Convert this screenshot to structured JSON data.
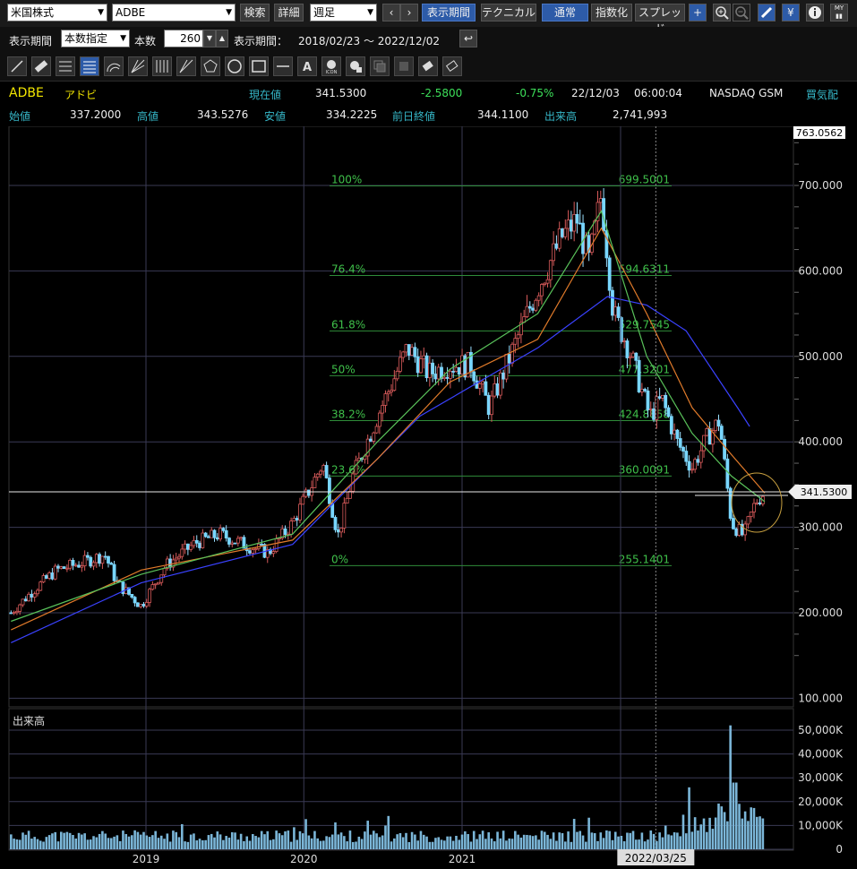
{
  "toolbar1": {
    "market": "米国株式",
    "symbol": "ADBE",
    "search_label": "検索",
    "detail_label": "詳細",
    "period_type": "週足",
    "display_period_label": "表示期間",
    "technical_label": "テクニカル",
    "normal_label": "通常",
    "index_label": "指数化",
    "spread_label": "スプレッド",
    "icons": [
      "prev-icon",
      "next-icon",
      "crosshair-icon",
      "zoom-in-icon",
      "zoom-out-icon",
      "pencil-icon",
      "yen-icon",
      "info-icon",
      "my-settings-icon"
    ]
  },
  "toolbar2": {
    "period_label": "表示期間",
    "period_mode": "本数指定",
    "count_label": "本数",
    "count_value": "260",
    "range_label": "表示期間：",
    "range_value": "2018/02/23 〜 2022/12/02"
  },
  "drawing_tools": [
    "trend-line-icon",
    "ruler-icon",
    "horizontal-lines-icon",
    "channel-lines-icon",
    "fan-arc-icon",
    "fan-lines-icon",
    "vertical-lines-icon",
    "pitchfork-icon",
    "pentagon-icon",
    "circle-icon",
    "rectangle-icon",
    "horizontal-line-icon",
    "text-a-icon",
    "icon-stamp-icon",
    "stamp-icon",
    "copy-icon",
    "hand-icon",
    "eraser-icon",
    "eraser-all-icon"
  ],
  "quote": {
    "symbol": "ADBE",
    "name": "アドビ",
    "current_label": "現在値",
    "current": "341.5300",
    "change": "-2.5800",
    "change_pct": "-0.75%",
    "date": "22/12/03",
    "time": "06:00:04",
    "exchange": "NASDAQ GSM",
    "mood_label": "買気配",
    "open_label": "始値",
    "open": "337.2000",
    "high_label": "高値",
    "high": "343.5276",
    "low_label": "安値",
    "low": "334.2225",
    "prev_close_label": "前日終値",
    "prev_close": "344.1100",
    "volume_label": "出来高",
    "volume": "2,741,993"
  },
  "chart_data": {
    "type": "candlestick",
    "top_label": "763.0562",
    "price_ticks": [
      "700.000",
      "600.000",
      "500.000",
      "400.000",
      "300.000",
      "200.000",
      "100.000"
    ],
    "price_tick_values": [
      700,
      600,
      500,
      400,
      300,
      200,
      100
    ],
    "x_labels": [
      "2019",
      "2020",
      "2021"
    ],
    "x_label_dates": [
      "2019-01-01",
      "2020-01-01",
      "2021-01-01"
    ],
    "cursor_date": "2022/03/25",
    "last_price_label": "341.5300",
    "last_price": 341.53,
    "fibonacci": [
      {
        "pct": "100%",
        "value": "699.5001",
        "price": 699.5001
      },
      {
        "pct": "76.4%",
        "value": "594.6311",
        "price": 594.6311
      },
      {
        "pct": "61.8%",
        "value": "529.7545",
        "price": 529.7545
      },
      {
        "pct": "50%",
        "value": "477.3201",
        "price": 477.3201
      },
      {
        "pct": "38.2%",
        "value": "424.8858",
        "price": 424.8858
      },
      {
        "pct": "23.6%",
        "value": "360.0091",
        "price": 360.0091
      },
      {
        "pct": "0%",
        "value": "255.1401",
        "price": 255.1401
      }
    ],
    "volume_title": "出来高",
    "volume_ticks": [
      "50,000K",
      "40,000K",
      "30,000K",
      "20,000K",
      "10,000K",
      "0"
    ],
    "volume_tick_values": [
      50000,
      40000,
      30000,
      20000,
      10000,
      0
    ],
    "price_path": [
      [
        "2018-02-23",
        200
      ],
      [
        "2018-04-13",
        225
      ],
      [
        "2018-06-08",
        250
      ],
      [
        "2018-08-03",
        258
      ],
      [
        "2018-09-28",
        268
      ],
      [
        "2018-10-26",
        235
      ],
      [
        "2018-12-21",
        208
      ],
      [
        "2019-02-15",
        255
      ],
      [
        "2019-04-26",
        282
      ],
      [
        "2019-06-21",
        292
      ],
      [
        "2019-08-16",
        280
      ],
      [
        "2019-10-11",
        270
      ],
      [
        "2019-12-06",
        305
      ],
      [
        "2020-02-14",
        375
      ],
      [
        "2020-03-20",
        290
      ],
      [
        "2020-04-24",
        360
      ],
      [
        "2020-06-19",
        430
      ],
      [
        "2020-08-28",
        510
      ],
      [
        "2020-10-16",
        480
      ],
      [
        "2020-12-04",
        490
      ],
      [
        "2021-01-22",
        490
      ],
      [
        "2021-03-05",
        440
      ],
      [
        "2021-04-30",
        510
      ],
      [
        "2021-06-25",
        580
      ],
      [
        "2021-08-20",
        640
      ],
      [
        "2021-09-24",
        660
      ],
      [
        "2021-10-22",
        610
      ],
      [
        "2021-11-19",
        690
      ],
      [
        "2021-12-17",
        550
      ],
      [
        "2022-01-21",
        510
      ],
      [
        "2022-03-11",
        430
      ],
      [
        "2022-04-08",
        450
      ],
      [
        "2022-05-13",
        400
      ],
      [
        "2022-06-17",
        370
      ],
      [
        "2022-07-22",
        405
      ],
      [
        "2022-08-19",
        425
      ],
      [
        "2022-09-16",
        305
      ],
      [
        "2022-10-14",
        290
      ],
      [
        "2022-11-11",
        330
      ],
      [
        "2022-12-02",
        341.53
      ]
    ],
    "ma_lines": [
      {
        "color": "#3a42ff",
        "points": [
          [
            "2018-02-23",
            165
          ],
          [
            "2018-12-21",
            235
          ],
          [
            "2019-12-06",
            280
          ],
          [
            "2020-09-25",
            430
          ],
          [
            "2021-06-25",
            510
          ],
          [
            "2021-12-03",
            570
          ],
          [
            "2022-03-04",
            560
          ],
          [
            "2022-06-03",
            530
          ],
          [
            "2022-09-30",
            440
          ],
          [
            "2022-10-28",
            418
          ]
        ]
      },
      {
        "color": "#e07a2a",
        "points": [
          [
            "2018-02-23",
            180
          ],
          [
            "2018-12-21",
            250
          ],
          [
            "2019-12-06",
            285
          ],
          [
            "2020-06-19",
            380
          ],
          [
            "2020-12-04",
            470
          ],
          [
            "2021-06-25",
            520
          ],
          [
            "2021-11-19",
            650
          ],
          [
            "2022-03-04",
            550
          ],
          [
            "2022-06-17",
            440
          ],
          [
            "2022-09-16",
            385
          ],
          [
            "2022-12-02",
            340
          ]
        ]
      },
      {
        "color": "#59c25a",
        "points": [
          [
            "2018-02-23",
            190
          ],
          [
            "2018-12-21",
            245
          ],
          [
            "2019-12-06",
            292
          ],
          [
            "2020-06-19",
            400
          ],
          [
            "2020-12-04",
            485
          ],
          [
            "2021-06-25",
            550
          ],
          [
            "2021-11-19",
            670
          ],
          [
            "2022-03-04",
            500
          ],
          [
            "2022-06-17",
            410
          ],
          [
            "2022-09-16",
            360
          ],
          [
            "2022-12-02",
            330
          ]
        ]
      }
    ]
  }
}
